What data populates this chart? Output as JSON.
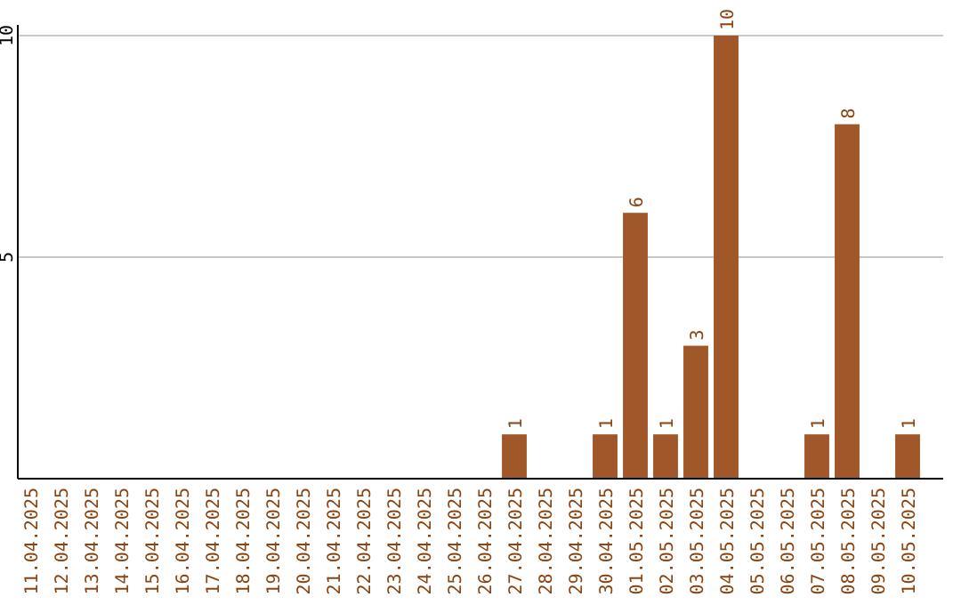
{
  "chart_data": {
    "type": "bar",
    "categories": [
      "11.04.2025",
      "12.04.2025",
      "13.04.2025",
      "14.04.2025",
      "15.04.2025",
      "16.04.2025",
      "17.04.2025",
      "18.04.2025",
      "19.04.2025",
      "20.04.2025",
      "21.04.2025",
      "22.04.2025",
      "23.04.2025",
      "24.04.2025",
      "25.04.2025",
      "26.04.2025",
      "27.04.2025",
      "28.04.2025",
      "29.04.2025",
      "30.04.2025",
      "01.05.2025",
      "02.05.2025",
      "03.05.2025",
      "04.05.2025",
      "05.05.2025",
      "06.05.2025",
      "07.05.2025",
      "08.05.2025",
      "09.05.2025",
      "10.05.2025"
    ],
    "values": [
      null,
      null,
      null,
      null,
      null,
      null,
      null,
      null,
      null,
      null,
      null,
      null,
      null,
      null,
      null,
      null,
      1,
      null,
      null,
      1,
      6,
      1,
      3,
      10,
      null,
      null,
      1,
      8,
      null,
      1
    ],
    "color": "#a0582a",
    "ylim": [
      0,
      10
    ],
    "yticks": [
      5,
      10
    ],
    "grid": "y",
    "data_labels": true
  }
}
